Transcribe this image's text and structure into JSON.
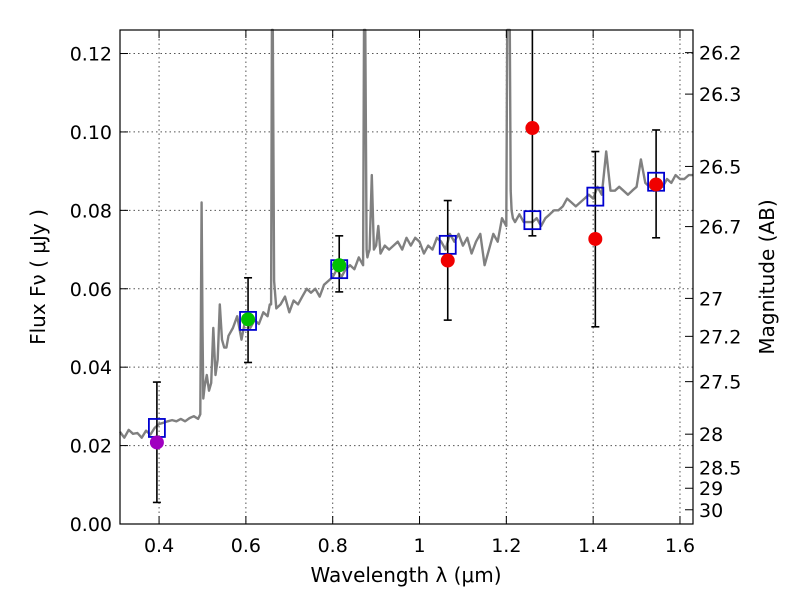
{
  "chart_data": {
    "type": "scatter",
    "xlabel": "Wavelength  λ (μm)",
    "ylabel": "Flux  Fν  ( μJy )",
    "y2label": "Magnitude (AB)",
    "xlim": [
      0.31,
      1.63
    ],
    "ylim": [
      0.0,
      0.126
    ],
    "grid": true,
    "xticks": [
      {
        "value": 0.4,
        "label": "0.4"
      },
      {
        "value": 0.6,
        "label": "0.6"
      },
      {
        "value": 0.8,
        "label": "0.8"
      },
      {
        "value": 1.0,
        "label": "1"
      },
      {
        "value": 1.2,
        "label": "1.2"
      },
      {
        "value": 1.4,
        "label": "1.4"
      },
      {
        "value": 1.6,
        "label": "1.6"
      }
    ],
    "yticks": [
      {
        "value": 0.0,
        "label": "0.00"
      },
      {
        "value": 0.02,
        "label": "0.02"
      },
      {
        "value": 0.04,
        "label": "0.04"
      },
      {
        "value": 0.06,
        "label": "0.06"
      },
      {
        "value": 0.08,
        "label": "0.08"
      },
      {
        "value": 0.1,
        "label": "0.10"
      },
      {
        "value": 0.12,
        "label": "0.12"
      }
    ],
    "magnitude_ticks": [
      {
        "mag": 26.2,
        "label": "26.2"
      },
      {
        "mag": 26.3,
        "label": "26.3"
      },
      {
        "mag": 26.5,
        "label": "26.5"
      },
      {
        "mag": 26.7,
        "label": "26.7"
      },
      {
        "mag": 27.0,
        "label": "27"
      },
      {
        "mag": 27.2,
        "label": "27.2"
      },
      {
        "mag": 27.5,
        "label": "27.5"
      },
      {
        "mag": 28.0,
        "label": "28"
      },
      {
        "mag": 28.5,
        "label": "28.5"
      },
      {
        "mag": 29.0,
        "label": "29"
      },
      {
        "mag": 30.0,
        "label": "30"
      }
    ],
    "photometry": [
      {
        "x": 0.395,
        "y": 0.0208,
        "err_low": 0.0055,
        "err_high": 0.0362,
        "color": "#a000c0"
      },
      {
        "x": 0.605,
        "y": 0.0522,
        "err_low": 0.0412,
        "err_high": 0.0628,
        "color": "#00c000"
      },
      {
        "x": 0.815,
        "y": 0.066,
        "err_low": 0.0592,
        "err_high": 0.0735,
        "color": "#00c000"
      },
      {
        "x": 1.065,
        "y": 0.0672,
        "err_low": 0.052,
        "err_high": 0.0825,
        "color": "#f00000"
      },
      {
        "x": 1.26,
        "y": 0.101,
        "err_low": 0.0735,
        "err_high": 0.126,
        "color": "#f00000"
      },
      {
        "x": 1.405,
        "y": 0.0727,
        "err_low": 0.0503,
        "err_high": 0.095,
        "color": "#f00000"
      },
      {
        "x": 1.545,
        "y": 0.0866,
        "err_low": 0.073,
        "err_high": 0.1005,
        "color": "#f00000"
      }
    ],
    "model_photometry": [
      {
        "x": 0.395,
        "y": 0.0245
      },
      {
        "x": 0.605,
        "y": 0.0518
      },
      {
        "x": 0.815,
        "y": 0.065
      },
      {
        "x": 1.065,
        "y": 0.0712
      },
      {
        "x": 1.26,
        "y": 0.0775
      },
      {
        "x": 1.405,
        "y": 0.0835
      },
      {
        "x": 1.545,
        "y": 0.0873
      }
    ],
    "spectrum": {
      "color": "#808080",
      "x": [
        0.31,
        0.32,
        0.33,
        0.34,
        0.35,
        0.36,
        0.37,
        0.38,
        0.39,
        0.4,
        0.41,
        0.42,
        0.43,
        0.44,
        0.45,
        0.46,
        0.47,
        0.48,
        0.49,
        0.495,
        0.498,
        0.5,
        0.502,
        0.505,
        0.51,
        0.515,
        0.52,
        0.525,
        0.53,
        0.535,
        0.54,
        0.545,
        0.55,
        0.555,
        0.56,
        0.57,
        0.58,
        0.59,
        0.6,
        0.61,
        0.62,
        0.63,
        0.64,
        0.65,
        0.655,
        0.658,
        0.66,
        0.662,
        0.665,
        0.67,
        0.68,
        0.69,
        0.7,
        0.71,
        0.72,
        0.73,
        0.74,
        0.75,
        0.76,
        0.77,
        0.78,
        0.79,
        0.8,
        0.81,
        0.82,
        0.83,
        0.84,
        0.85,
        0.86,
        0.87,
        0.872,
        0.875,
        0.878,
        0.88,
        0.882,
        0.885,
        0.89,
        0.895,
        0.9,
        0.905,
        0.91,
        0.92,
        0.93,
        0.94,
        0.95,
        0.96,
        0.97,
        0.98,
        0.99,
        1.0,
        1.01,
        1.02,
        1.03,
        1.04,
        1.05,
        1.06,
        1.07,
        1.08,
        1.09,
        1.1,
        1.11,
        1.12,
        1.13,
        1.14,
        1.15,
        1.16,
        1.17,
        1.18,
        1.19,
        1.2,
        1.202,
        1.205,
        1.208,
        1.21,
        1.212,
        1.215,
        1.22,
        1.23,
        1.24,
        1.25,
        1.26,
        1.27,
        1.28,
        1.29,
        1.3,
        1.31,
        1.32,
        1.33,
        1.34,
        1.35,
        1.36,
        1.37,
        1.38,
        1.39,
        1.4,
        1.41,
        1.42,
        1.43,
        1.44,
        1.45,
        1.46,
        1.47,
        1.48,
        1.49,
        1.5,
        1.51,
        1.52,
        1.53,
        1.54,
        1.55,
        1.56,
        1.57,
        1.58,
        1.59,
        1.6,
        1.61,
        1.62,
        1.63
      ],
      "y": [
        0.0235,
        0.022,
        0.024,
        0.023,
        0.0232,
        0.022,
        0.0238,
        0.0228,
        0.0245,
        0.0255,
        0.0258,
        0.0262,
        0.0265,
        0.0262,
        0.0268,
        0.0262,
        0.027,
        0.0275,
        0.0268,
        0.028,
        0.082,
        0.05,
        0.032,
        0.035,
        0.038,
        0.034,
        0.036,
        0.05,
        0.038,
        0.042,
        0.056,
        0.047,
        0.045,
        0.045,
        0.048,
        0.05,
        0.053,
        0.047,
        0.053,
        0.05,
        0.052,
        0.051,
        0.054,
        0.053,
        0.056,
        0.056,
        0.126,
        0.126,
        0.062,
        0.055,
        0.056,
        0.058,
        0.054,
        0.057,
        0.056,
        0.058,
        0.06,
        0.059,
        0.06,
        0.058,
        0.061,
        0.062,
        0.063,
        0.065,
        0.063,
        0.065,
        0.066,
        0.065,
        0.068,
        0.066,
        0.126,
        0.126,
        0.07,
        0.068,
        0.069,
        0.07,
        0.089,
        0.07,
        0.071,
        0.076,
        0.069,
        0.071,
        0.07,
        0.071,
        0.072,
        0.07,
        0.073,
        0.071,
        0.073,
        0.072,
        0.069,
        0.071,
        0.07,
        0.073,
        0.072,
        0.07,
        0.074,
        0.072,
        0.074,
        0.071,
        0.073,
        0.069,
        0.072,
        0.074,
        0.066,
        0.07,
        0.074,
        0.072,
        0.078,
        0.076,
        0.126,
        0.126,
        0.126,
        0.085,
        0.08,
        0.078,
        0.077,
        0.079,
        0.077,
        0.077,
        0.077,
        0.078,
        0.076,
        0.078,
        0.079,
        0.08,
        0.08,
        0.081,
        0.083,
        0.082,
        0.081,
        0.082,
        0.083,
        0.084,
        0.083,
        0.086,
        0.084,
        0.095,
        0.085,
        0.085,
        0.086,
        0.085,
        0.084,
        0.085,
        0.086,
        0.093,
        0.087,
        0.086,
        0.085,
        0.087,
        0.086,
        0.088,
        0.087,
        0.089,
        0.088,
        0.088,
        0.089,
        0.089
      ]
    }
  }
}
